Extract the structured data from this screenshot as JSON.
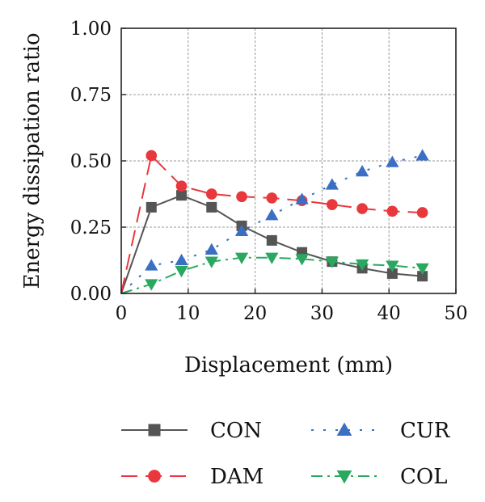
{
  "chart_data": {
    "type": "line",
    "xlabel": "Displacement (mm)",
    "ylabel": "Energy dissipation ratio",
    "xlim": [
      0,
      50
    ],
    "ylim": [
      0,
      1.0
    ],
    "xticks": [
      "0",
      "10",
      "20",
      "30",
      "40",
      "50"
    ],
    "yticks": [
      "0.00",
      "0.25",
      "0.50",
      "0.75",
      "1.00"
    ],
    "grid": true,
    "legend_placement": "bottom",
    "series": [
      {
        "name": "CON",
        "color": "#555555",
        "marker": "square",
        "line": "solid",
        "x": [
          0,
          4.5,
          9,
          13.5,
          18,
          22.5,
          27,
          31.5,
          36,
          40.5,
          45
        ],
        "y": [
          0.0,
          0.325,
          0.37,
          0.325,
          0.255,
          0.2,
          0.155,
          0.12,
          0.095,
          0.075,
          0.065
        ]
      },
      {
        "name": "DAM",
        "color": "#e8383d",
        "marker": "circle",
        "line": "dashed",
        "x": [
          0,
          4.5,
          9,
          13.5,
          18,
          22.5,
          27,
          31.5,
          36,
          40.5,
          45
        ],
        "y": [
          0.0,
          0.52,
          0.405,
          0.375,
          0.365,
          0.36,
          0.35,
          0.335,
          0.32,
          0.31,
          0.305
        ]
      },
      {
        "name": "CUR",
        "color": "#3a6fc4",
        "marker": "triangle-up",
        "line": "dotted",
        "x": [
          0,
          4.5,
          9,
          13.5,
          18,
          22.5,
          27,
          31.5,
          36,
          40.5,
          45
        ],
        "y": [
          0.0,
          0.105,
          0.125,
          0.165,
          0.235,
          0.295,
          0.355,
          0.41,
          0.46,
          0.495,
          0.52
        ]
      },
      {
        "name": "COL",
        "color": "#2aa860",
        "marker": "triangle-down",
        "line": "dashdot",
        "x": [
          0,
          4.5,
          9,
          13.5,
          18,
          22.5,
          27,
          31.5,
          36,
          40.5,
          45
        ],
        "y": [
          0.0,
          0.035,
          0.085,
          0.12,
          0.135,
          0.135,
          0.13,
          0.12,
          0.11,
          0.105,
          0.095
        ]
      }
    ]
  }
}
